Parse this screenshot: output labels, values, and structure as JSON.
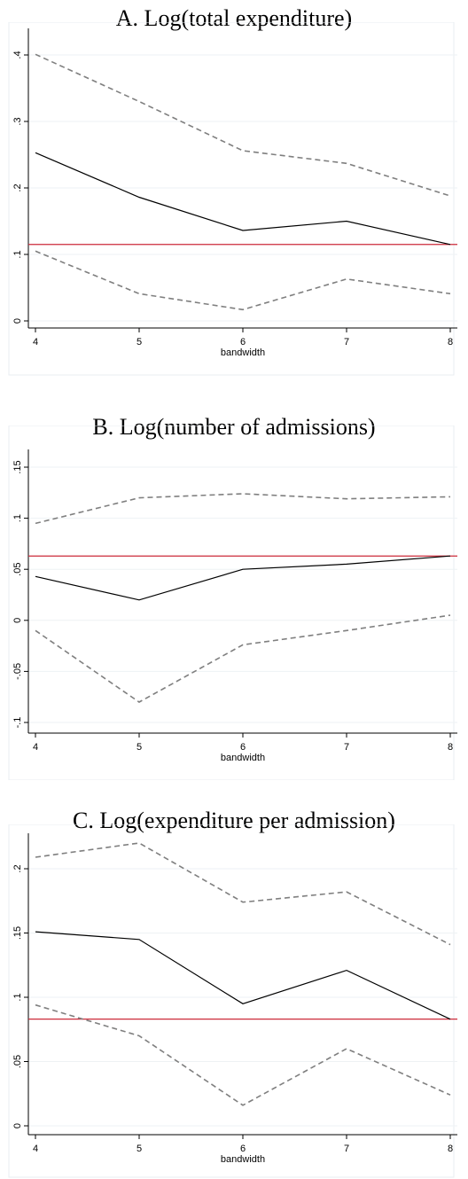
{
  "chart_data": [
    {
      "type": "line",
      "title": "A. Log(total expenditure)",
      "xlabel": "bandwidth",
      "ylabel": "",
      "x": [
        4,
        5,
        6,
        7,
        8
      ],
      "ylim": [
        0,
        0.4
      ],
      "x_ticks": [
        "4",
        "5",
        "6",
        "7",
        "8"
      ],
      "y_ticks": [
        0,
        0.1,
        0.2,
        0.3,
        0.4
      ],
      "y_tick_labels": [
        "0",
        ".1",
        ".2",
        ".3",
        ".4"
      ],
      "grid": true,
      "series": [
        {
          "style": "solid",
          "color": "#000000",
          "values": [
            0.253,
            0.186,
            0.136,
            0.15,
            0.115
          ]
        },
        {
          "style": "dashed",
          "color": "#7f7f7f",
          "values": [
            0.401,
            0.33,
            0.256,
            0.237,
            0.188
          ]
        },
        {
          "style": "dashed",
          "color": "#7f7f7f",
          "values": [
            0.105,
            0.041,
            0.017,
            0.063,
            0.041
          ]
        }
      ],
      "reference_line": {
        "y": 0.115,
        "color": "#cc2a3a"
      }
    },
    {
      "type": "line",
      "title": "B. Log(number of admissions)",
      "xlabel": "bandwidth",
      "ylabel": "",
      "x": [
        4,
        5,
        6,
        7,
        8
      ],
      "ylim": [
        -0.1,
        0.15
      ],
      "x_ticks": [
        "4",
        "5",
        "6",
        "7",
        "8"
      ],
      "y_ticks": [
        -0.1,
        -0.05,
        0,
        0.05,
        0.1,
        0.15
      ],
      "y_tick_labels": [
        "-.1",
        "-.05",
        "0",
        ".05",
        ".1",
        ".15"
      ],
      "grid": true,
      "series": [
        {
          "style": "solid",
          "color": "#000000",
          "values": [
            0.043,
            0.02,
            0.05,
            0.055,
            0.063
          ]
        },
        {
          "style": "dashed",
          "color": "#7f7f7f",
          "values": [
            0.095,
            0.12,
            0.124,
            0.119,
            0.121
          ]
        },
        {
          "style": "dashed",
          "color": "#7f7f7f",
          "values": [
            -0.01,
            -0.08,
            -0.024,
            -0.01,
            0.005
          ]
        }
      ],
      "reference_line": {
        "y": 0.063,
        "color": "#cc2a3a"
      }
    },
    {
      "type": "line",
      "title": "C. Log(expenditure per admission)",
      "xlabel": "bandwidth",
      "ylabel": "",
      "x": [
        4,
        5,
        6,
        7,
        8
      ],
      "ylim": [
        0,
        0.2
      ],
      "x_ticks": [
        "4",
        "5",
        "6",
        "7",
        "8"
      ],
      "y_ticks": [
        0,
        0.05,
        0.1,
        0.15,
        0.2
      ],
      "y_tick_labels": [
        "0",
        ".05",
        ".1",
        ".15",
        ".2"
      ],
      "grid": true,
      "series": [
        {
          "style": "solid",
          "color": "#000000",
          "values": [
            0.151,
            0.145,
            0.095,
            0.121,
            0.083
          ]
        },
        {
          "style": "dashed",
          "color": "#7f7f7f",
          "values": [
            0.209,
            0.22,
            0.174,
            0.182,
            0.141
          ]
        },
        {
          "style": "dashed",
          "color": "#7f7f7f",
          "values": [
            0.094,
            0.07,
            0.016,
            0.06,
            0.024
          ]
        }
      ],
      "reference_line": {
        "y": 0.083,
        "color": "#cc2a3a"
      }
    }
  ]
}
